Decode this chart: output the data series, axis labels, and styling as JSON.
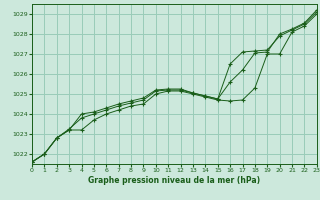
{
  "title": "Graphe pression niveau de la mer (hPa)",
  "background_color": "#cce8dc",
  "grid_color": "#99ccb8",
  "line_color": "#1a5e1a",
  "xlim": [
    0,
    23
  ],
  "ylim": [
    1021.5,
    1029.5
  ],
  "yticks": [
    1022,
    1023,
    1024,
    1025,
    1026,
    1027,
    1028,
    1029
  ],
  "xticks": [
    0,
    1,
    2,
    3,
    4,
    5,
    6,
    7,
    8,
    9,
    10,
    11,
    12,
    13,
    14,
    15,
    16,
    17,
    18,
    19,
    20,
    21,
    22,
    23
  ],
  "series": [
    [
      1021.6,
      1022.0,
      1022.8,
      1023.2,
      1023.2,
      1023.7,
      1024.0,
      1024.2,
      1024.4,
      1024.5,
      1025.0,
      1025.15,
      1025.15,
      1025.0,
      1024.85,
      1024.7,
      1024.65,
      1024.7,
      1025.3,
      1027.0,
      1027.0,
      1028.1,
      1028.4,
      1029.0
    ],
    [
      1021.6,
      1022.0,
      1022.8,
      1023.25,
      1023.8,
      1024.0,
      1024.2,
      1024.4,
      1024.55,
      1024.7,
      1025.15,
      1025.2,
      1025.2,
      1025.05,
      1024.9,
      1024.75,
      1026.5,
      1027.1,
      1027.15,
      1027.2,
      1027.9,
      1028.2,
      1028.5,
      1029.1
    ],
    [
      1021.6,
      1022.0,
      1022.8,
      1023.2,
      1024.0,
      1024.1,
      1024.3,
      1024.5,
      1024.65,
      1024.8,
      1025.2,
      1025.25,
      1025.25,
      1025.05,
      1024.9,
      1024.75,
      1025.6,
      1026.2,
      1027.05,
      1027.1,
      1028.0,
      1028.25,
      1028.55,
      1029.2
    ]
  ]
}
